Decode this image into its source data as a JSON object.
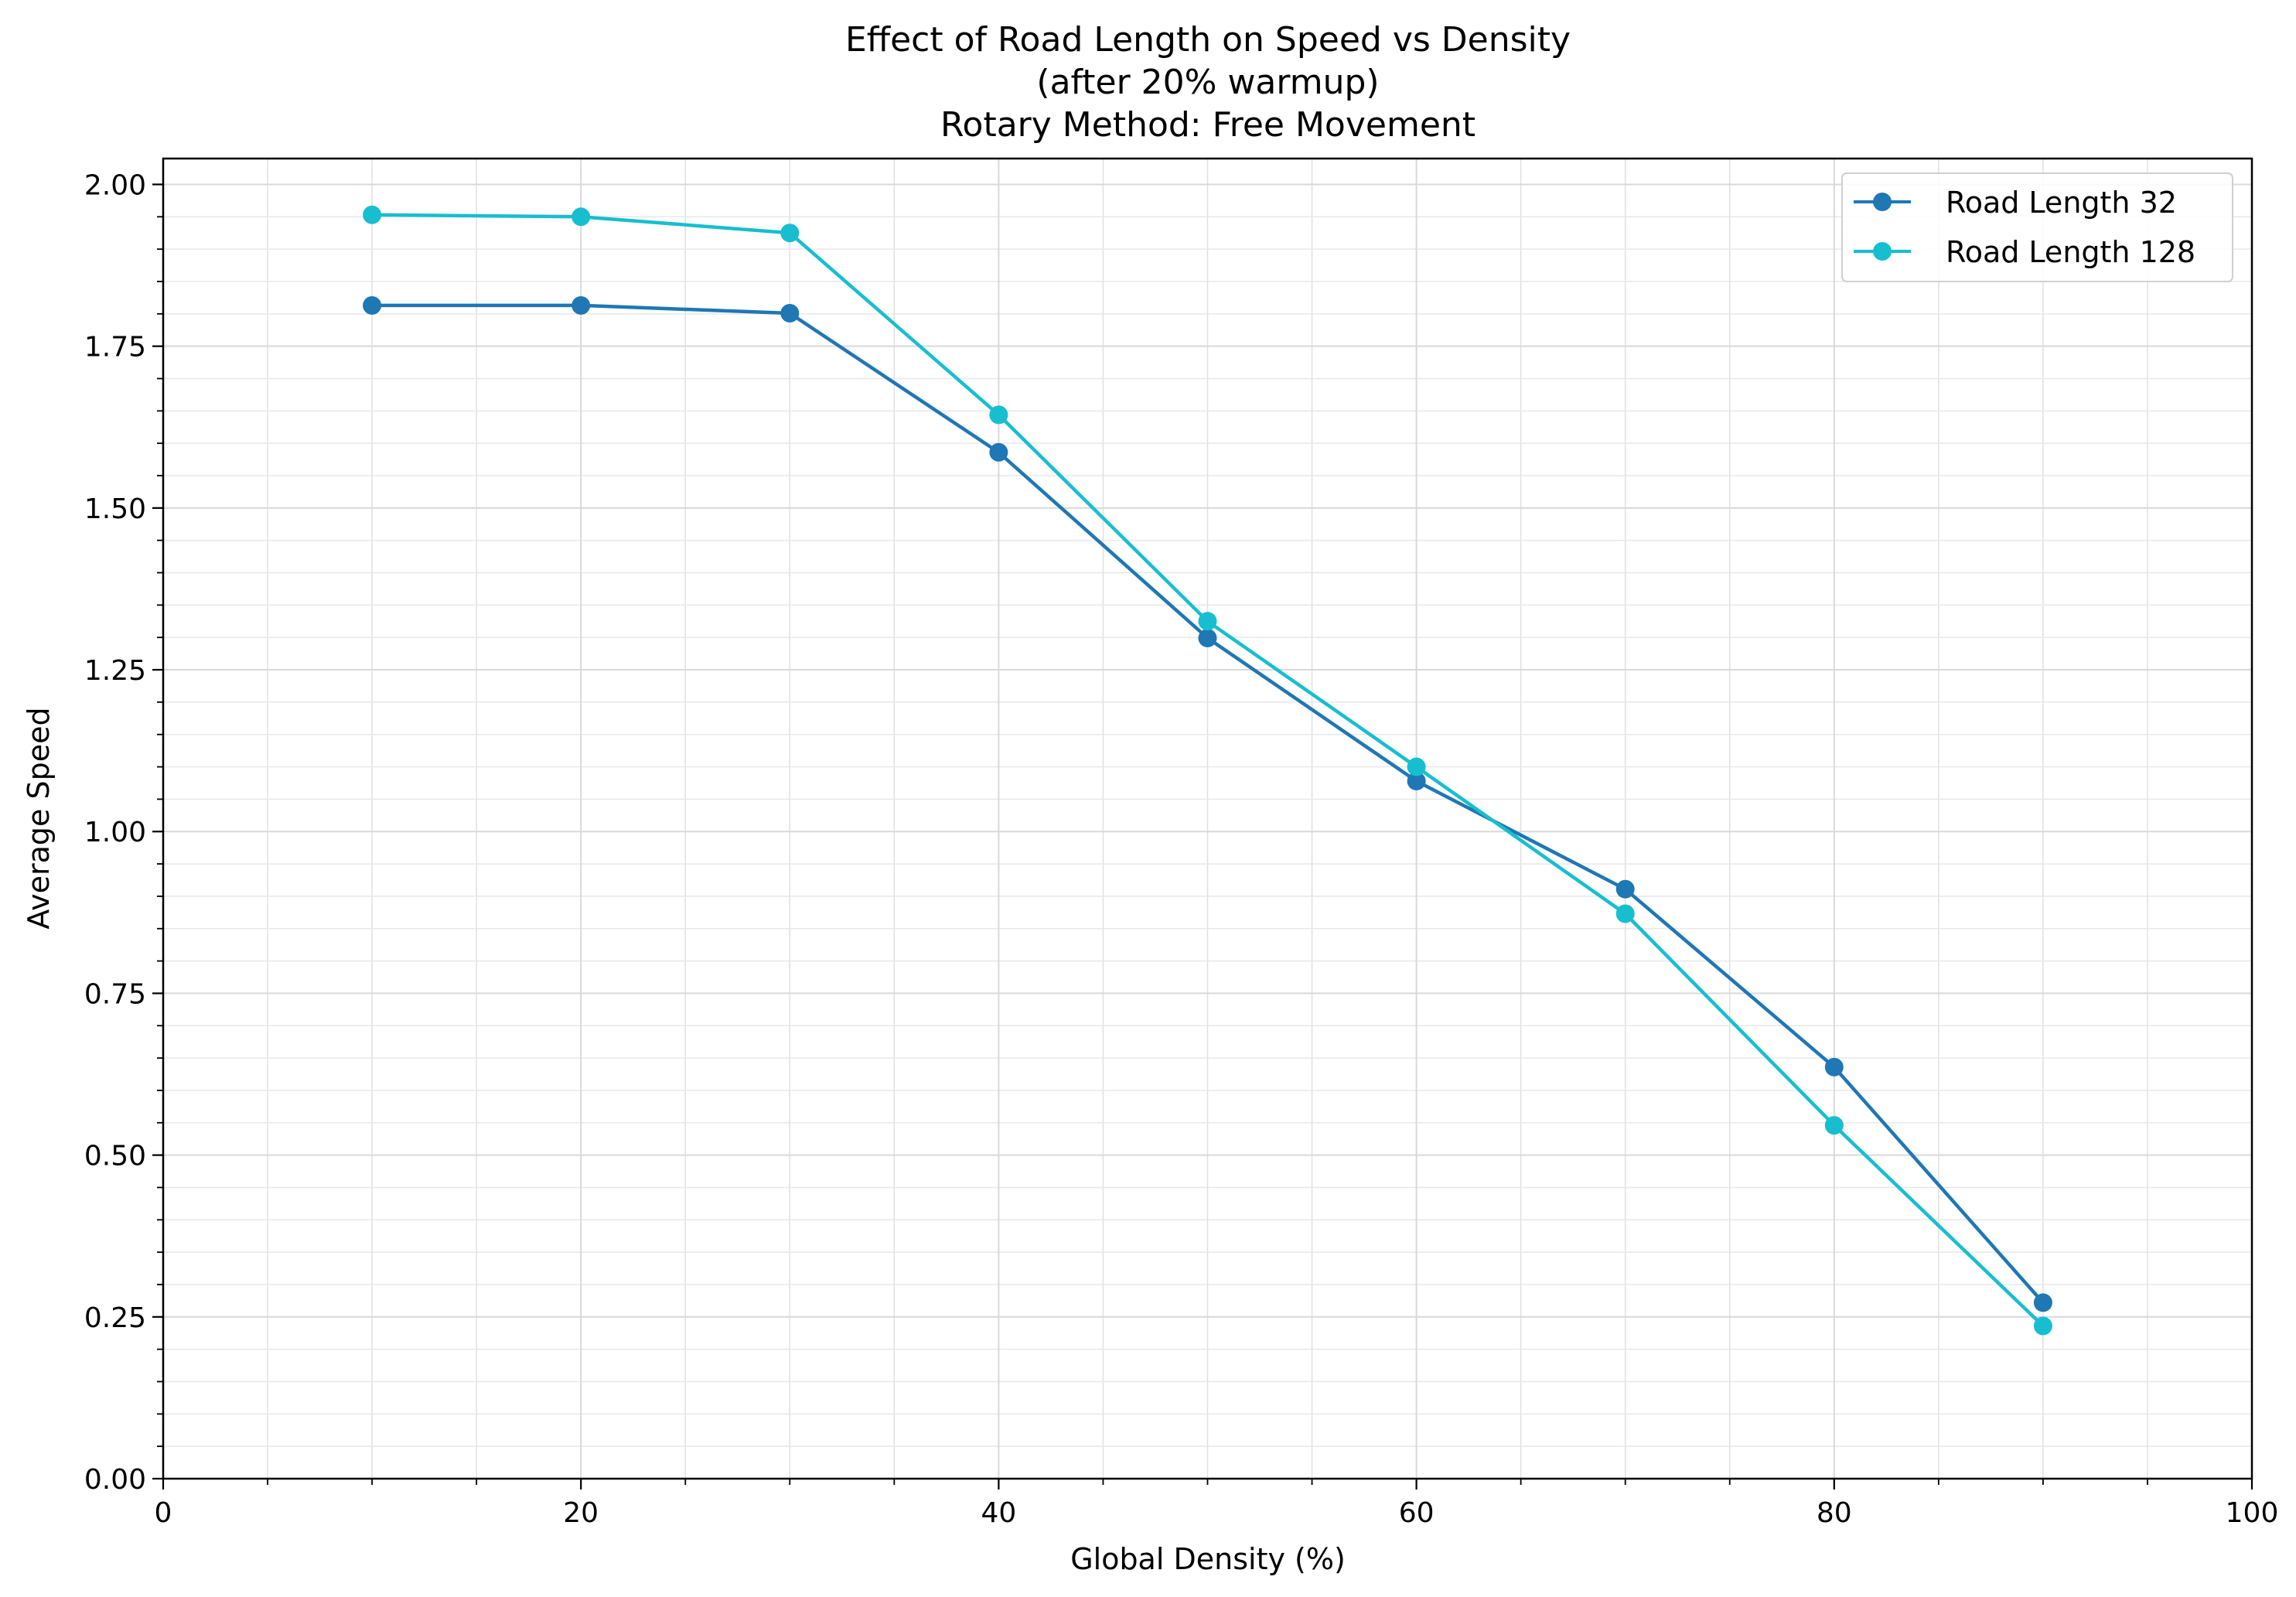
{
  "chart_data": {
    "type": "line",
    "title": [
      "Effect of Road Length on Speed vs Density",
      "(after 20% warmup)",
      "Rotary Method: Free Movement"
    ],
    "xlabel": "Global Density (%)",
    "ylabel": "Average Speed",
    "xlim": [
      0,
      100
    ],
    "ylim": [
      0,
      2.04
    ],
    "xticks": [
      0,
      20,
      40,
      60,
      80,
      100
    ],
    "xtick_labels": [
      "0",
      "20",
      "40",
      "60",
      "80",
      "100"
    ],
    "yticks": [
      0,
      0.25,
      0.5,
      0.75,
      1.0,
      1.25,
      1.5,
      1.75,
      2.0
    ],
    "ytick_labels": [
      "0.00",
      "0.25",
      "0.50",
      "0.75",
      "1.00",
      "1.25",
      "1.50",
      "1.75",
      "2.00"
    ],
    "x_minor_step": 5,
    "y_minor_step": 0.05,
    "grid": true,
    "legend_position": "top-right",
    "x": [
      10,
      20,
      30,
      40,
      50,
      60,
      70,
      80,
      90
    ],
    "series": [
      {
        "name": "Road Length 32",
        "color": "#1f77b4",
        "values": [
          1.813,
          1.813,
          1.801,
          1.586,
          1.299,
          1.078,
          0.911,
          0.636,
          0.272
        ]
      },
      {
        "name": "Road Length 128",
        "color": "#17becf",
        "values": [
          1.953,
          1.95,
          1.925,
          1.644,
          1.325,
          1.1,
          0.873,
          0.546,
          0.236
        ]
      }
    ]
  }
}
